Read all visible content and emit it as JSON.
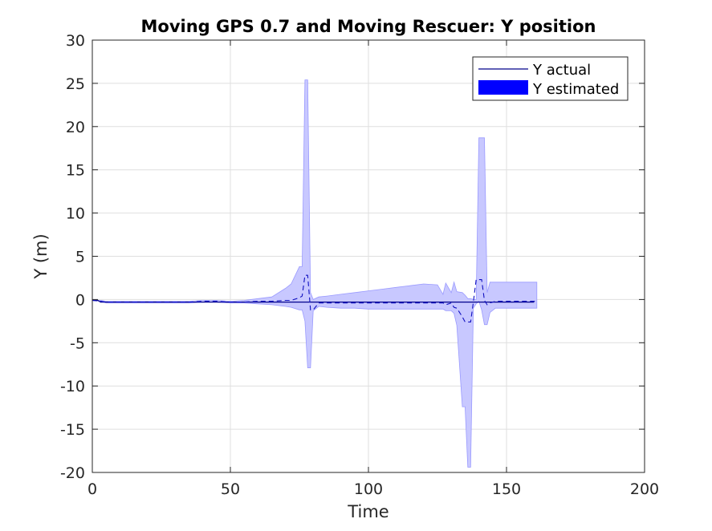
{
  "chart_data": {
    "type": "area",
    "title": "Moving GPS 0.7 and Moving Rescuer: Y position",
    "xlabel": "Time",
    "ylabel": "Y (m)",
    "xlim": [
      0,
      200
    ],
    "ylim": [
      -20,
      30
    ],
    "xticks": [
      0,
      50,
      100,
      150,
      200
    ],
    "yticks": [
      -20,
      -15,
      -10,
      -5,
      0,
      5,
      10,
      15,
      20,
      25,
      30
    ],
    "grid": true,
    "legend_position": "top-right",
    "series": [
      {
        "name": "Y actual",
        "style": "line",
        "color": "#00008B",
        "x": [
          0,
          2,
          3,
          160
        ],
        "y": [
          -0.1,
          -0.1,
          -0.3,
          -0.3
        ]
      },
      {
        "name": "Y estimated",
        "style": "band-with-dashed-mean",
        "color": "#0000FF",
        "fill_color": "#C8C8FF",
        "x": [
          0,
          3,
          5,
          10,
          15,
          20,
          25,
          30,
          35,
          40,
          45,
          50,
          55,
          60,
          65,
          70,
          72,
          75,
          76,
          77,
          78,
          79,
          80,
          82,
          85,
          90,
          95,
          100,
          105,
          110,
          115,
          120,
          125,
          127,
          128,
          130,
          131,
          132,
          134,
          135,
          136,
          137,
          138,
          139,
          140,
          141,
          142,
          143,
          144,
          146,
          148,
          150,
          155,
          161
        ],
        "upper": [
          -0.1,
          -0.1,
          -0.2,
          -0.2,
          -0.2,
          -0.2,
          -0.2,
          -0.2,
          -0.2,
          -0.1,
          -0.1,
          -0.2,
          -0.1,
          0.1,
          0.3,
          1.3,
          1.8,
          3.8,
          3.8,
          25.4,
          25.4,
          0.8,
          0.0,
          0.3,
          0.4,
          0.6,
          0.8,
          1.0,
          1.2,
          1.4,
          1.6,
          1.8,
          1.7,
          0.6,
          1.9,
          0.8,
          2.0,
          0.9,
          0.8,
          0.5,
          0.1,
          0.1,
          0.0,
          0.0,
          18.7,
          18.7,
          18.7,
          0.8,
          2.0,
          2.0,
          2.0,
          2.0,
          2.0,
          2.0
        ],
        "mean": [
          -0.1,
          -0.2,
          -0.3,
          -0.3,
          -0.3,
          -0.3,
          -0.3,
          -0.3,
          -0.3,
          -0.2,
          -0.2,
          -0.3,
          -0.3,
          -0.2,
          -0.2,
          -0.1,
          -0.1,
          0.2,
          0.4,
          2.8,
          2.8,
          -1.2,
          -1.2,
          -0.4,
          -0.4,
          -0.4,
          -0.4,
          -0.4,
          -0.4,
          -0.4,
          -0.4,
          -0.4,
          -0.4,
          -0.4,
          -0.6,
          -0.4,
          -0.9,
          -1.0,
          -2.0,
          -2.6,
          -2.6,
          -2.6,
          -0.3,
          2.3,
          2.3,
          2.3,
          -0.1,
          -0.6,
          -0.4,
          -0.2,
          -0.2,
          -0.2,
          -0.2,
          -0.2
        ],
        "lower": [
          -0.1,
          -0.2,
          -0.4,
          -0.4,
          -0.4,
          -0.4,
          -0.4,
          -0.4,
          -0.4,
          -0.3,
          -0.3,
          -0.4,
          -0.4,
          -0.5,
          -0.6,
          -0.8,
          -0.9,
          -1.2,
          -1.2,
          -2.5,
          -7.9,
          -7.9,
          -1.3,
          -0.8,
          -0.9,
          -1.0,
          -1.0,
          -1.1,
          -1.1,
          -1.1,
          -1.1,
          -1.1,
          -1.1,
          -1.1,
          -1.3,
          -1.3,
          -1.6,
          -3.0,
          -12.4,
          -12.4,
          -19.4,
          -19.4,
          -1.0,
          -0.5,
          -0.2,
          -1.2,
          -2.9,
          -2.9,
          -1.5,
          -1.0,
          -1.0,
          -1.0,
          -1.0,
          -1.0
        ]
      }
    ]
  }
}
